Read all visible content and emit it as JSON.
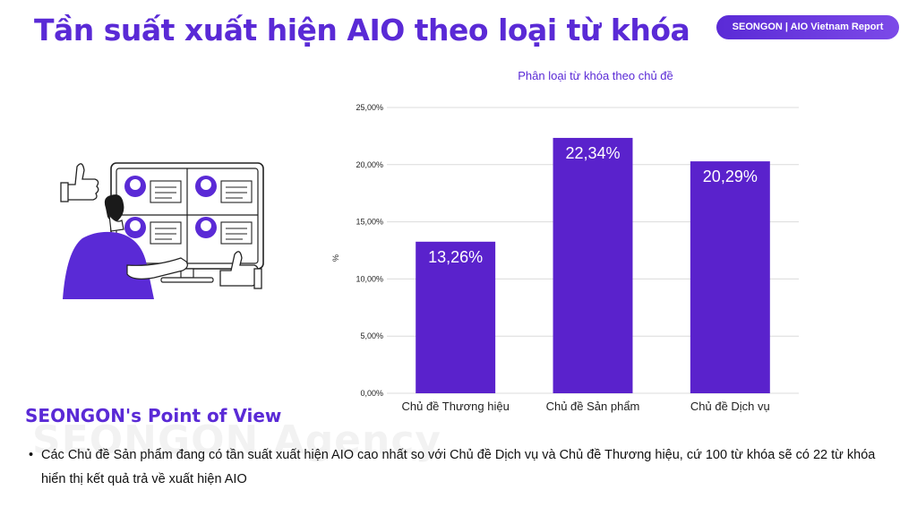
{
  "header": {
    "title": "Tần suất xuất hiện AIO theo loại từ khóa",
    "badge": "SEONGON | AIO Vietnam Report"
  },
  "chart_data": {
    "type": "bar",
    "title": "Phân loại từ khóa theo chủ đề",
    "ylabel": "%",
    "xlabel": "",
    "categories": [
      "Chủ đề Thương hiệu",
      "Chủ đề Sản phẩm",
      "Chủ đề Dịch vụ"
    ],
    "values": [
      13.26,
      22.34,
      20.29
    ],
    "data_labels": [
      "13,26%",
      "22,34%",
      "20,29%"
    ],
    "ylim": [
      0,
      25
    ],
    "y_ticks": [
      0,
      5,
      10,
      15,
      20,
      25
    ],
    "y_tick_labels": [
      "0,00%",
      "5,00%",
      "10,00%",
      "15,00%",
      "20,00%",
      "25,00%"
    ],
    "grid": true,
    "bar_color": "#5a22cc"
  },
  "watermark": "SEONGON Agency",
  "pov": {
    "title": "SEONGON's Point of View",
    "bullet": "Các Chủ đề Sản phẩm đang có tần suất xuất hiện AIO cao nhất so với Chủ đề Dịch vụ và Chủ đề Thương hiệu, cứ 100 từ khóa sẽ có 22 từ khóa hiển thị kết quả trả về xuất hiện AIO"
  },
  "illustration_icon": "person-reviewing-feedback-screen-icon",
  "colors": {
    "accent": "#5a2ad6",
    "bar": "#5a22cc"
  }
}
